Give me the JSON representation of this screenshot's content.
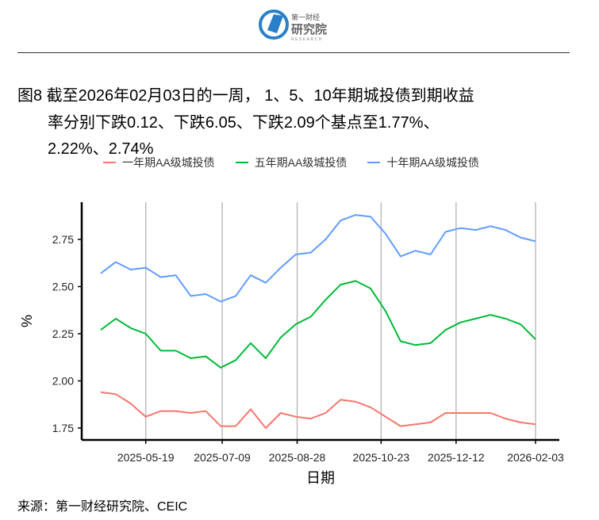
{
  "logo": {
    "text_cn": "第一财经 研究院",
    "text_en": "RESEARCH"
  },
  "title": {
    "line1": "图8  截至2026年02月03日的一周， 1、5、10年期城投债到期收益",
    "line2": "率分别下跌0.12、下跌6.05、下跌2.09个基点至1.77%、",
    "line3": "2.22%、2.74%"
  },
  "source": "来源：第一财经研究院、CEIC",
  "chart_data": {
    "type": "line",
    "xlabel": "日期",
    "ylabel": "%",
    "ylim": [
      1.7,
      2.93
    ],
    "yticks": [
      1.75,
      2.0,
      2.25,
      2.5,
      2.75
    ],
    "ytick_labels": [
      "1.75",
      "2.00",
      "2.25",
      "2.50",
      "2.75"
    ],
    "xticks": [
      "2025-05-19",
      "2025-07-09",
      "2025-08-28",
      "2025-10-23",
      "2025-12-12",
      "2026-02-03"
    ],
    "grid": "vertical major",
    "legend": "top",
    "x": [
      "2025-04-19",
      "2025-04-29",
      "2025-05-09",
      "2025-05-19",
      "2025-05-29",
      "2025-06-08",
      "2025-06-18",
      "2025-06-28",
      "2025-07-08",
      "2025-07-18",
      "2025-07-28",
      "2025-08-07",
      "2025-08-17",
      "2025-08-27",
      "2025-09-06",
      "2025-09-16",
      "2025-09-26",
      "2025-10-06",
      "2025-10-16",
      "2025-10-26",
      "2025-11-05",
      "2025-11-15",
      "2025-11-25",
      "2025-12-05",
      "2025-12-15",
      "2025-12-25",
      "2026-01-04",
      "2026-01-14",
      "2026-01-24",
      "2026-02-03"
    ],
    "series": [
      {
        "name": "一年期AA级城投债",
        "color": "#F8766D",
        "values": [
          1.94,
          1.93,
          1.88,
          1.81,
          1.84,
          1.84,
          1.83,
          1.84,
          1.76,
          1.76,
          1.85,
          1.75,
          1.83,
          1.81,
          1.8,
          1.83,
          1.9,
          1.89,
          1.86,
          1.81,
          1.76,
          1.77,
          1.78,
          1.83,
          1.83,
          1.83,
          1.83,
          1.8,
          1.78,
          1.77
        ]
      },
      {
        "name": "五年期AA级城投债",
        "color": "#00BA38",
        "values": [
          2.27,
          2.33,
          2.28,
          2.25,
          2.16,
          2.16,
          2.12,
          2.13,
          2.07,
          2.11,
          2.2,
          2.12,
          2.23,
          2.3,
          2.34,
          2.43,
          2.51,
          2.53,
          2.49,
          2.37,
          2.21,
          2.19,
          2.2,
          2.27,
          2.31,
          2.33,
          2.35,
          2.33,
          2.3,
          2.22
        ]
      },
      {
        "name": "十年期AA级城投债",
        "color": "#619CFF",
        "values": [
          2.57,
          2.63,
          2.59,
          2.6,
          2.55,
          2.56,
          2.45,
          2.46,
          2.42,
          2.45,
          2.56,
          2.52,
          2.6,
          2.67,
          2.68,
          2.75,
          2.85,
          2.88,
          2.87,
          2.78,
          2.66,
          2.69,
          2.67,
          2.79,
          2.81,
          2.8,
          2.82,
          2.8,
          2.76,
          2.74
        ]
      }
    ]
  }
}
